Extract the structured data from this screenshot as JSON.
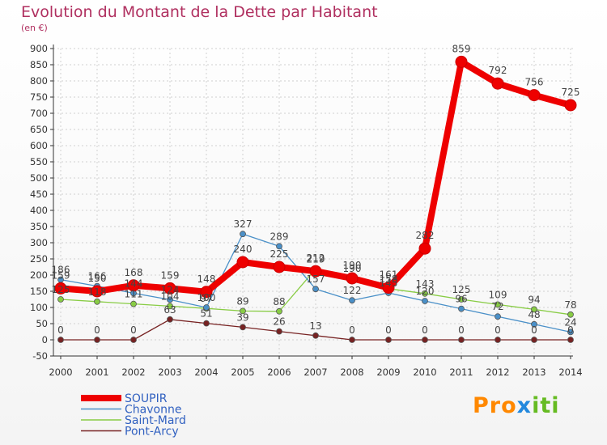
{
  "chart_data": {
    "type": "line",
    "title": "Evolution du Montant de la Dette par Habitant",
    "subtitle": "(en €)",
    "x": [
      "2000",
      "2001",
      "2002",
      "2003",
      "2004",
      "2005",
      "2006",
      "2007",
      "2008",
      "2009",
      "2010",
      "2011",
      "2012",
      "2013",
      "2014"
    ],
    "ylim": [
      -50,
      900
    ],
    "yticks": [
      -50,
      0,
      50,
      100,
      150,
      200,
      250,
      300,
      350,
      400,
      450,
      500,
      550,
      600,
      650,
      700,
      750,
      800,
      850,
      900
    ],
    "grid": true,
    "legend_position": "bottom-left",
    "series": [
      {
        "name": "SOUPIR",
        "color": "#ee0000",
        "values": [
          159,
          150,
          168,
          159,
          148,
          240,
          225,
          212,
          190,
          161,
          282,
          859,
          792,
          756,
          725
        ]
      },
      {
        "name": "Chavonne",
        "color": "#4a90c8",
        "values": [
          186,
          166,
          144,
          124,
          100,
          327,
          289,
          157,
          122,
          145,
          120,
          96,
          72,
          48,
          24
        ]
      },
      {
        "name": "Saint-Mard",
        "color": "#88cc44",
        "values": [
          125,
          118,
          111,
          104,
          97,
          89,
          88,
          219,
          190,
          158,
          143,
          125,
          109,
          94,
          78
        ]
      },
      {
        "name": "Pont-Arcy",
        "color": "#772222",
        "values": [
          0,
          0,
          0,
          63,
          51,
          39,
          26,
          13,
          0,
          0,
          0,
          0,
          0,
          0,
          0
        ]
      }
    ]
  },
  "logo_text": {
    "a": "Pro",
    "b": "x",
    "c": "iti"
  }
}
